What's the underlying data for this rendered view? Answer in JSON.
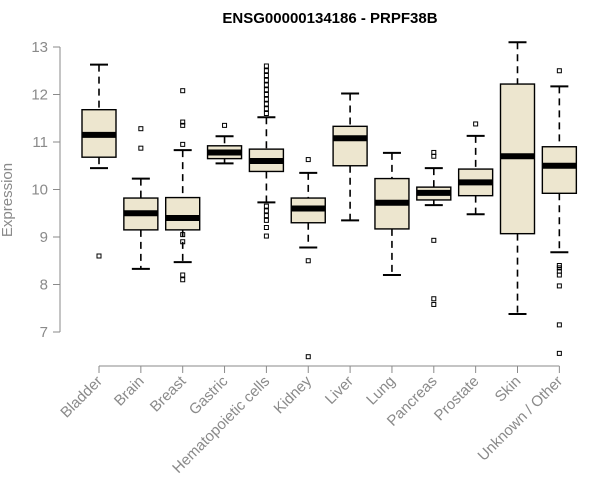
{
  "chart_data": {
    "type": "boxplot",
    "title": "ENSG00000134186 - PRPF38B",
    "xlabel": "",
    "ylabel": "Expression",
    "ylim": [
      6.4,
      13.2
    ],
    "yticks": [
      7,
      8,
      9,
      10,
      11,
      12,
      13
    ],
    "categories": [
      "Bladder",
      "Brain",
      "Breast",
      "Gastric",
      "Hematopoietic cells",
      "Kidney",
      "Liver",
      "Lung",
      "Pancreas",
      "Prostate",
      "Skin",
      "Unknown / Other"
    ],
    "box_color": "#ede6cf",
    "series": [
      {
        "category": "Bladder",
        "whisker_low": 10.45,
        "q1": 10.68,
        "median": 11.15,
        "q3": 11.68,
        "whisker_high": 12.63,
        "outliers": [
          8.6
        ]
      },
      {
        "category": "Brain",
        "whisker_low": 8.33,
        "q1": 9.15,
        "median": 9.5,
        "q3": 9.82,
        "whisker_high": 10.23,
        "outliers": [
          10.87,
          11.28
        ]
      },
      {
        "category": "Breast",
        "whisker_low": 8.47,
        "q1": 9.15,
        "median": 9.4,
        "q3": 9.83,
        "whisker_high": 10.83,
        "outliers": [
          8.1,
          8.2,
          8.9,
          9.05,
          10.95,
          11.35,
          11.42,
          12.08
        ]
      },
      {
        "category": "Gastric",
        "whisker_low": 10.55,
        "q1": 10.65,
        "median": 10.78,
        "q3": 10.92,
        "whisker_high": 11.12,
        "outliers": [
          11.35
        ]
      },
      {
        "category": "Hematopoietic cells",
        "whisker_low": 9.73,
        "q1": 10.38,
        "median": 10.6,
        "q3": 10.85,
        "whisker_high": 11.52,
        "outliers": [
          9.02,
          9.2,
          9.35,
          9.45,
          9.55,
          9.65,
          11.6,
          11.7,
          11.8,
          11.9,
          12.0,
          12.1,
          12.2,
          12.3,
          12.4,
          12.5,
          12.6
        ]
      },
      {
        "category": "Kidney",
        "whisker_low": 8.78,
        "q1": 9.3,
        "median": 9.6,
        "q3": 9.82,
        "whisker_high": 10.35,
        "outliers": [
          6.48,
          8.5,
          10.63
        ]
      },
      {
        "category": "Liver",
        "whisker_low": 9.35,
        "q1": 10.5,
        "median": 11.08,
        "q3": 11.33,
        "whisker_high": 12.02,
        "outliers": []
      },
      {
        "category": "Lung",
        "whisker_low": 8.2,
        "q1": 9.17,
        "median": 9.72,
        "q3": 10.23,
        "whisker_high": 10.77,
        "outliers": []
      },
      {
        "category": "Pancreas",
        "whisker_low": 9.67,
        "q1": 9.78,
        "median": 9.93,
        "q3": 10.05,
        "whisker_high": 10.45,
        "outliers": [
          7.58,
          7.7,
          8.93,
          10.7,
          10.78
        ]
      },
      {
        "category": "Prostate",
        "whisker_low": 9.48,
        "q1": 9.87,
        "median": 10.15,
        "q3": 10.43,
        "whisker_high": 11.13,
        "outliers": [
          11.38
        ]
      },
      {
        "category": "Skin",
        "whisker_low": 7.38,
        "q1": 9.07,
        "median": 10.7,
        "q3": 12.22,
        "whisker_high": 13.1,
        "outliers": []
      },
      {
        "category": "Unknown / Other",
        "whisker_low": 8.68,
        "q1": 9.92,
        "median": 10.5,
        "q3": 10.9,
        "whisker_high": 12.17,
        "outliers": [
          6.55,
          7.15,
          7.97,
          8.2,
          8.28,
          8.35,
          8.4,
          12.5
        ]
      }
    ]
  }
}
